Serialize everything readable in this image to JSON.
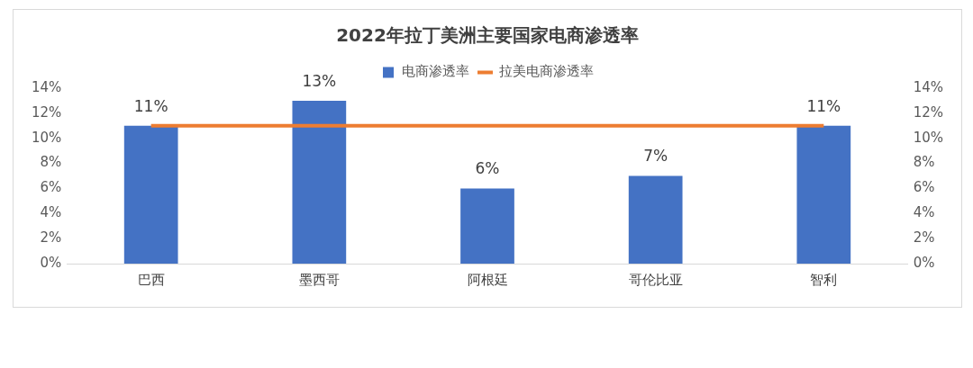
{
  "chart_data": {
    "type": "bar",
    "title": "2022年拉丁美洲主要国家电商渗透率",
    "categories": [
      "巴西",
      "墨西哥",
      "阿根廷",
      "哥伦比亚",
      "智利"
    ],
    "series": [
      {
        "name": "电商渗透率",
        "color": "#4472c4",
        "values": [
          11,
          13,
          6,
          7,
          11
        ],
        "value_labels": [
          "11%",
          "13%",
          "6%",
          "7%",
          "11%"
        ]
      },
      {
        "name": "拉美电商渗透率",
        "type": "line",
        "axis": "y2",
        "color": "#ed7d31",
        "values": [
          11,
          11,
          11,
          11,
          11
        ]
      }
    ],
    "ylim": [
      0,
      14
    ],
    "yticks": [
      {
        "value": 0,
        "label": "0%"
      },
      {
        "value": 2,
        "label": "2%"
      },
      {
        "value": 4,
        "label": "4%"
      },
      {
        "value": 6,
        "label": "6%"
      },
      {
        "value": 8,
        "label": "8%"
      },
      {
        "value": 10,
        "label": "10%"
      },
      {
        "value": 12,
        "label": "12%"
      },
      {
        "value": 14,
        "label": "14%"
      }
    ],
    "y2lim": [
      0,
      14
    ],
    "y2ticks": [
      {
        "value": 0,
        "label": "0%"
      },
      {
        "value": 2,
        "label": "2%"
      },
      {
        "value": 4,
        "label": "4%"
      },
      {
        "value": 6,
        "label": "6%"
      },
      {
        "value": 8,
        "label": "8%"
      },
      {
        "value": 10,
        "label": "10%"
      },
      {
        "value": 12,
        "label": "12%"
      },
      {
        "value": 14,
        "label": "14%"
      }
    ],
    "legend": "top",
    "grid": false,
    "marker": "none"
  }
}
